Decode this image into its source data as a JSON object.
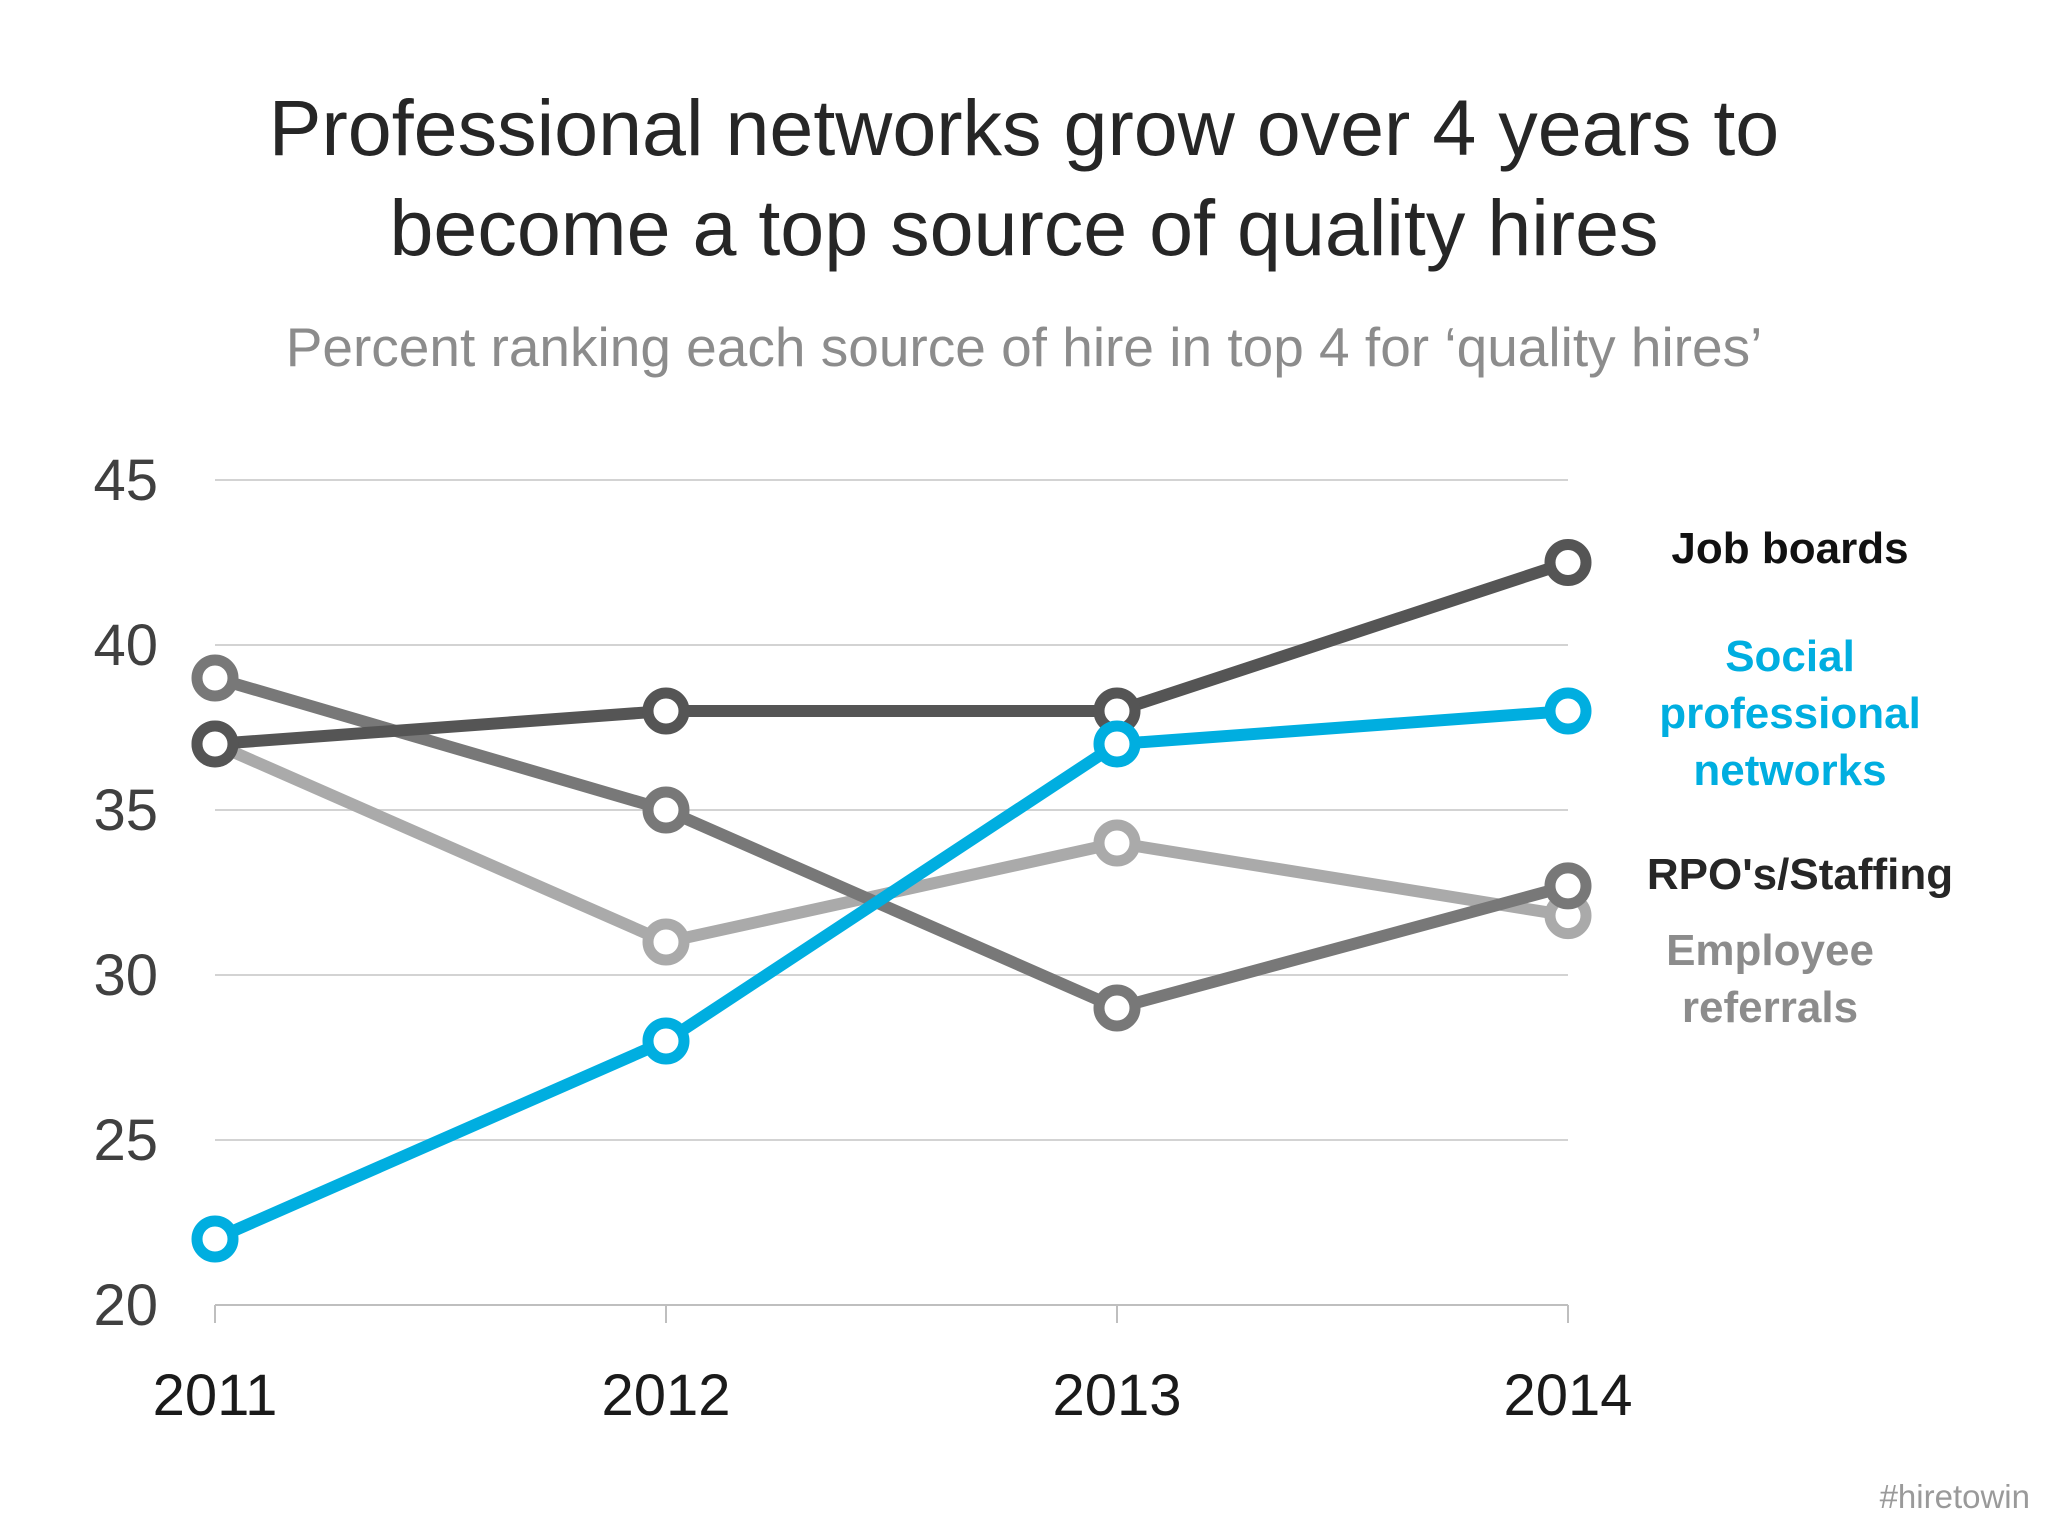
{
  "chart_data": {
    "type": "line",
    "title": [
      "Professional networks grow over 4 years to",
      "become a top source of quality hires"
    ],
    "subtitle": "Percent ranking each source of hire in top 4 for ‘quality hires’",
    "x": [
      "2011",
      "2012",
      "2013",
      "2014"
    ],
    "ylim": [
      20,
      45
    ],
    "yticks": [
      "20",
      "25",
      "30",
      "35",
      "40",
      "45"
    ],
    "grid": true,
    "legend": "right, inline labels at series ends",
    "series": [
      {
        "name": [
          "Job boards"
        ],
        "values": [
          37,
          38,
          38,
          42.5
        ],
        "color": "#555555",
        "label_color": "#111111"
      },
      {
        "name": [
          "Social",
          "professional",
          "networks"
        ],
        "values": [
          22,
          28,
          37,
          38
        ],
        "color": "#00aee0",
        "label_color": "#00aee0"
      },
      {
        "name": [
          "RPO's/Staffing"
        ],
        "values": [
          39,
          35,
          29,
          32.7
        ],
        "color": "#787878",
        "label_color": "#262626"
      },
      {
        "name": [
          "Employee",
          "referrals"
        ],
        "values": [
          37,
          31,
          34,
          31.8
        ],
        "color": "#aaaaaa",
        "label_color": "#8c8c8c"
      }
    ]
  },
  "watermark": "#hiretowin"
}
